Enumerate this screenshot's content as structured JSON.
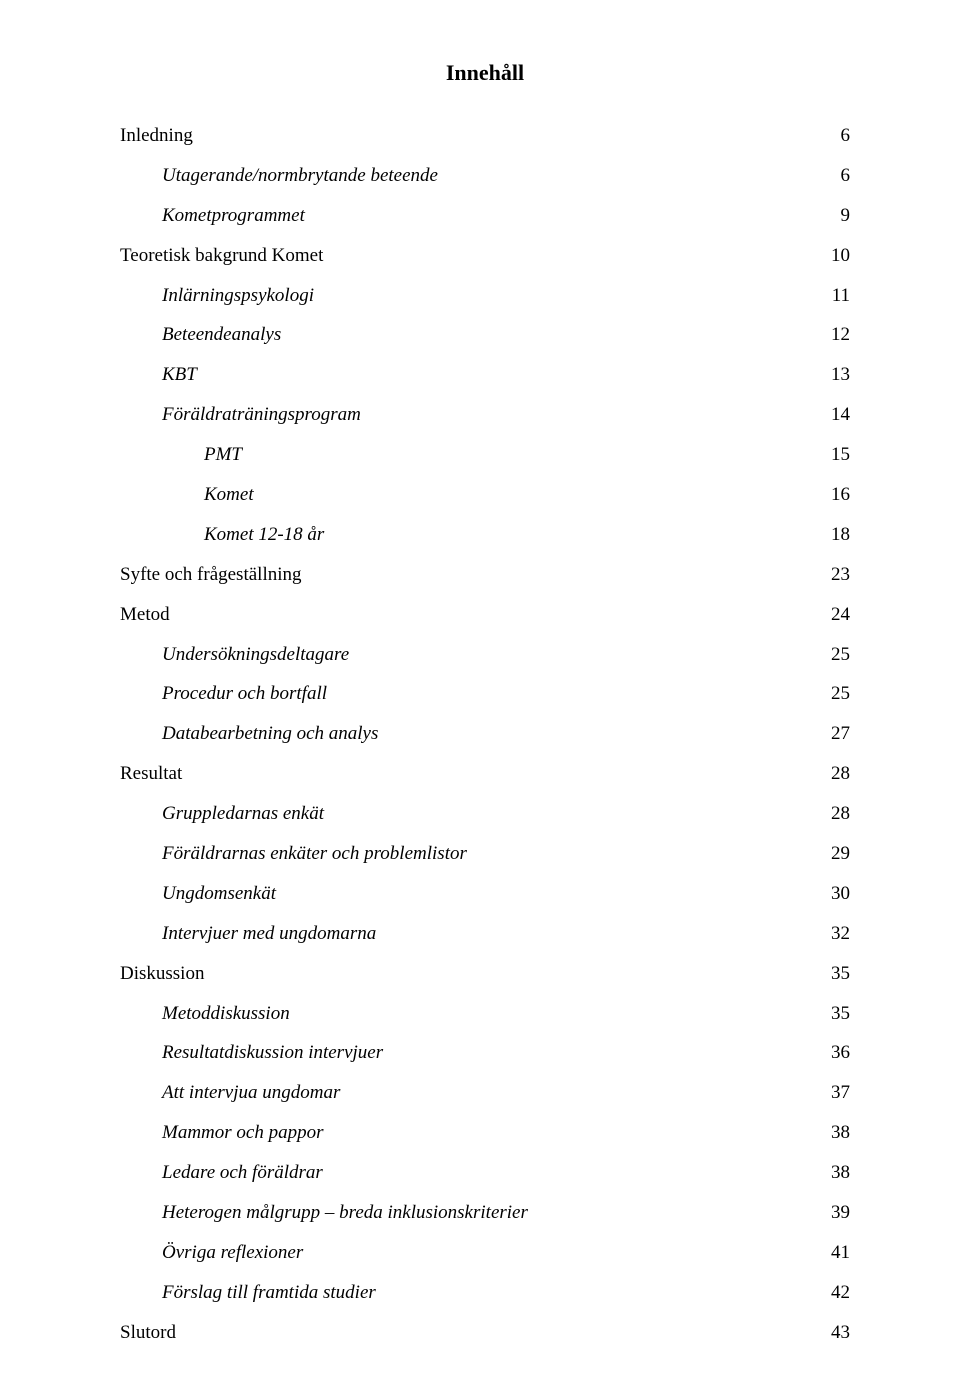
{
  "title": "Innehåll",
  "entries": [
    {
      "label": "Inledning",
      "page": "6",
      "indent": 0,
      "italic": false
    },
    {
      "label": "Utagerande/normbrytande beteende",
      "page": "6",
      "indent": 1,
      "italic": true
    },
    {
      "label": "Kometprogrammet",
      "page": "9",
      "indent": 1,
      "italic": true
    },
    {
      "label": "Teoretisk bakgrund Komet",
      "page": "10",
      "indent": 0,
      "italic": false
    },
    {
      "label": "Inlärningspsykologi",
      "page": "11",
      "indent": 1,
      "italic": true
    },
    {
      "label": "Beteendeanalys",
      "page": "12",
      "indent": 1,
      "italic": true
    },
    {
      "label": "KBT",
      "page": "13",
      "indent": 1,
      "italic": true
    },
    {
      "label": "Föräldraträningsprogram",
      "page": "14",
      "indent": 1,
      "italic": true
    },
    {
      "label": "PMT",
      "page": "15",
      "indent": 2,
      "italic": true
    },
    {
      "label": "Komet",
      "page": "16",
      "indent": 2,
      "italic": true
    },
    {
      "label": "Komet 12-18 år",
      "page": "18",
      "indent": 2,
      "italic": true
    },
    {
      "label": "Syfte och frågeställning",
      "page": "23",
      "indent": 0,
      "italic": false
    },
    {
      "label": "Metod",
      "page": "24",
      "indent": 0,
      "italic": false
    },
    {
      "label": "Undersökningsdeltagare",
      "page": "25",
      "indent": 1,
      "italic": true
    },
    {
      "label": "Procedur och bortfall",
      "page": "25",
      "indent": 1,
      "italic": true
    },
    {
      "label": "Databearbetning och analys",
      "page": "27",
      "indent": 1,
      "italic": true
    },
    {
      "label": "Resultat",
      "page": "28",
      "indent": 0,
      "italic": false
    },
    {
      "label": "Gruppledarnas enkät",
      "page": "28",
      "indent": 1,
      "italic": true
    },
    {
      "label": "Föräldrarnas enkäter och problemlistor",
      "page": "29",
      "indent": 1,
      "italic": true
    },
    {
      "label": "Ungdomsenkät",
      "page": "30",
      "indent": 1,
      "italic": true
    },
    {
      "label": "Intervjuer med ungdomarna",
      "page": "32",
      "indent": 1,
      "italic": true
    },
    {
      "label": "Diskussion",
      "page": "35",
      "indent": 0,
      "italic": false
    },
    {
      "label": "Metoddiskussion",
      "page": "35",
      "indent": 1,
      "italic": true
    },
    {
      "label": "Resultatdiskussion intervjuer",
      "page": "36",
      "indent": 1,
      "italic": true
    },
    {
      "label": "Att intervjua ungdomar",
      "page": "37",
      "indent": 1,
      "italic": true
    },
    {
      "label": "Mammor och pappor",
      "page": "38",
      "indent": 1,
      "italic": true
    },
    {
      "label": "Ledare och föräldrar",
      "page": "38",
      "indent": 1,
      "italic": true
    },
    {
      "label": "Heterogen målgrupp – breda inklusionskriterier",
      "page": "39",
      "indent": 1,
      "italic": true
    },
    {
      "label": "Övriga reflexioner",
      "page": "41",
      "indent": 1,
      "italic": true
    },
    {
      "label": "Förslag till framtida studier",
      "page": "42",
      "indent": 1,
      "italic": true
    },
    {
      "label": "Slutord",
      "page": "43",
      "indent": 0,
      "italic": false
    }
  ]
}
